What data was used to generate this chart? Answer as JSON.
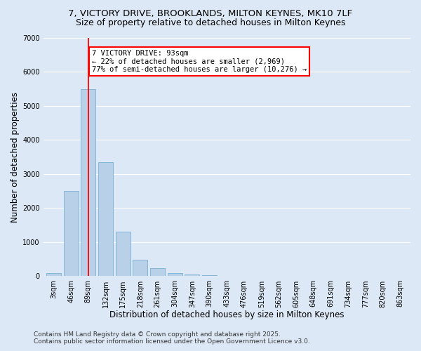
{
  "title_line1": "7, VICTORY DRIVE, BROOKLANDS, MILTON KEYNES, MK10 7LF",
  "title_line2": "Size of property relative to detached houses in Milton Keynes",
  "xlabel": "Distribution of detached houses by size in Milton Keynes",
  "ylabel": "Number of detached properties",
  "categories": [
    "3sqm",
    "46sqm",
    "89sqm",
    "132sqm",
    "175sqm",
    "218sqm",
    "261sqm",
    "304sqm",
    "347sqm",
    "390sqm",
    "433sqm",
    "476sqm",
    "519sqm",
    "562sqm",
    "605sqm",
    "648sqm",
    "691sqm",
    "734sqm",
    "777sqm",
    "820sqm",
    "863sqm"
  ],
  "values": [
    100,
    2500,
    5500,
    3350,
    1300,
    480,
    230,
    100,
    60,
    30,
    0,
    0,
    0,
    0,
    0,
    0,
    0,
    0,
    0,
    0,
    0
  ],
  "bar_color": "#b8d0e8",
  "bar_edge_color": "#7aafd4",
  "vline_x": 2,
  "vline_color": "red",
  "annotation_text": "7 VICTORY DRIVE: 93sqm\n← 22% of detached houses are smaller (2,969)\n77% of semi-detached houses are larger (10,276) →",
  "annotation_box_color": "white",
  "annotation_box_edge_color": "red",
  "ylim": [
    0,
    7000
  ],
  "yticks": [
    0,
    1000,
    2000,
    3000,
    4000,
    5000,
    6000,
    7000
  ],
  "background_color": "#dce8f5",
  "grid_color": "white",
  "footer_line1": "Contains HM Land Registry data © Crown copyright and database right 2025.",
  "footer_line2": "Contains public sector information licensed under the Open Government Licence v3.0.",
  "title_fontsize": 9.5,
  "subtitle_fontsize": 9,
  "axis_label_fontsize": 8.5,
  "tick_fontsize": 7,
  "annotation_fontsize": 7.5,
  "footer_fontsize": 6.5
}
